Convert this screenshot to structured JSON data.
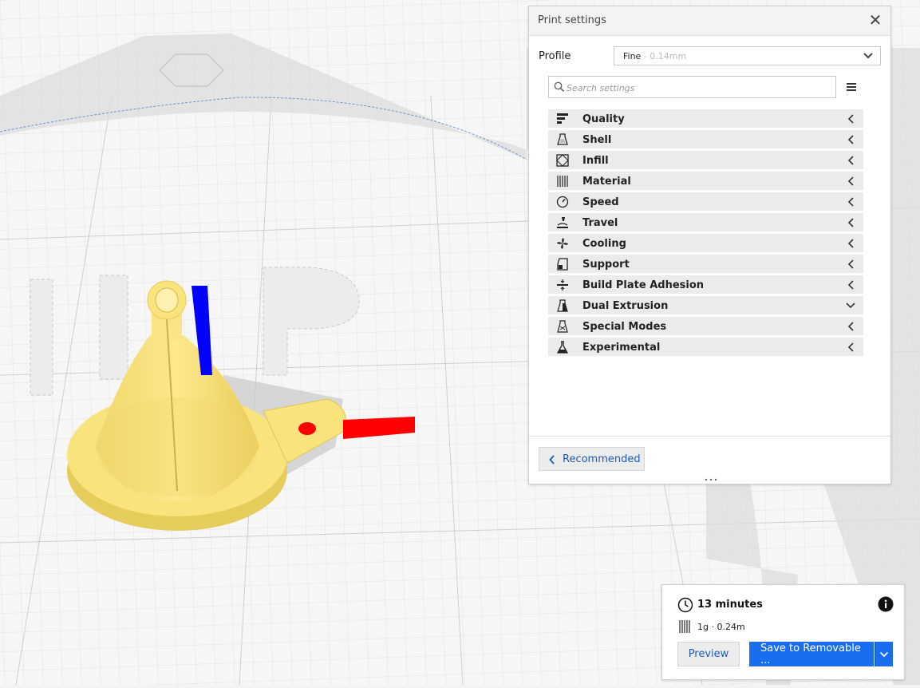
{
  "print_settings": {
    "title": "Print settings",
    "profile_label": "Profile",
    "profile_name": "Fine",
    "profile_detail": " - 0.14mm",
    "search_placeholder": "Search settings",
    "categories": [
      {
        "label": "Quality",
        "icon": "quality-icon"
      },
      {
        "label": "Shell",
        "icon": "shell-icon"
      },
      {
        "label": "Infill",
        "icon": "infill-icon"
      },
      {
        "label": "Material",
        "icon": "material-icon"
      },
      {
        "label": "Speed",
        "icon": "speed-icon"
      },
      {
        "label": "Travel",
        "icon": "travel-icon"
      },
      {
        "label": "Cooling",
        "icon": "cooling-icon"
      },
      {
        "label": "Support",
        "icon": "support-icon"
      },
      {
        "label": "Build Plate Adhesion",
        "icon": "adhesion-icon"
      },
      {
        "label": "Dual Extrusion",
        "icon": "dual-extrusion-icon",
        "expanded": true
      },
      {
        "label": "Special Modes",
        "icon": "special-modes-icon"
      },
      {
        "label": "Experimental",
        "icon": "experimental-icon"
      }
    ],
    "recommended_label": "Recommended"
  },
  "estimate": {
    "time": "13 minutes",
    "material": "1g · 0.24m",
    "preview_label": "Preview",
    "save_label": "Save to Removable ..."
  },
  "colors": {
    "accent": "#196ef0",
    "link": "#1d5bb6",
    "model": "#f5e27a",
    "axis_x": "#ff0000",
    "axis_z": "#0000ff"
  }
}
